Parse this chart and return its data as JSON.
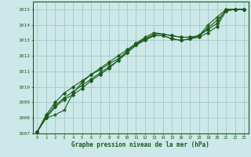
{
  "xlabel": "Graphe pression niveau de la mer (hPa)",
  "x_ticks": [
    0,
    1,
    2,
    3,
    4,
    5,
    6,
    7,
    8,
    9,
    10,
    11,
    12,
    13,
    14,
    15,
    16,
    17,
    18,
    19,
    20,
    21,
    22,
    23
  ],
  "ylim": [
    1007,
    1015.5
  ],
  "xlim": [
    -0.5,
    23.5
  ],
  "yticks": [
    1007,
    1008,
    1009,
    1010,
    1011,
    1012,
    1013,
    1014,
    1015
  ],
  "background_color": "#cce8e8",
  "grid_color": "#aacccc",
  "line_color": "#1a5c1a",
  "axes_color": "#1a5c1a",
  "text_color": "#1a5c1a",
  "series": [
    [
      1007.1,
      1008.0,
      1008.2,
      1008.5,
      1009.6,
      1010.3,
      1010.8,
      1011.1,
      1011.5,
      1011.8,
      1012.3,
      1012.8,
      1013.2,
      1013.5,
      1013.4,
      1013.3,
      1013.2,
      1013.2,
      1013.3,
      1014.0,
      1014.5,
      1015.0,
      1015.0,
      1015.0
    ],
    [
      1007.1,
      1008.0,
      1008.7,
      1009.2,
      1009.5,
      1009.9,
      1010.4,
      1010.8,
      1011.2,
      1011.7,
      1012.2,
      1012.7,
      1013.1,
      1013.4,
      1013.4,
      1013.3,
      1013.2,
      1013.2,
      1013.3,
      1013.8,
      1014.3,
      1014.9,
      1015.0,
      1015.0
    ],
    [
      1007.1,
      1008.1,
      1008.8,
      1009.3,
      1009.7,
      1010.1,
      1010.5,
      1010.9,
      1011.3,
      1011.7,
      1012.2,
      1012.7,
      1013.0,
      1013.3,
      1013.3,
      1013.1,
      1013.0,
      1013.1,
      1013.2,
      1013.5,
      1013.9,
      1014.9,
      1015.0,
      1015.0
    ],
    [
      1007.1,
      1008.2,
      1009.0,
      1009.6,
      1010.0,
      1010.4,
      1010.8,
      1011.2,
      1011.6,
      1012.0,
      1012.4,
      1012.8,
      1013.1,
      1013.3,
      1013.3,
      1013.1,
      1013.0,
      1013.1,
      1013.3,
      1013.7,
      1014.1,
      1015.0,
      1015.0,
      1015.0
    ]
  ],
  "markers": [
    "*",
    "D",
    "D",
    "D"
  ],
  "markersizes": [
    3.5,
    2.5,
    2.5,
    2.5
  ]
}
